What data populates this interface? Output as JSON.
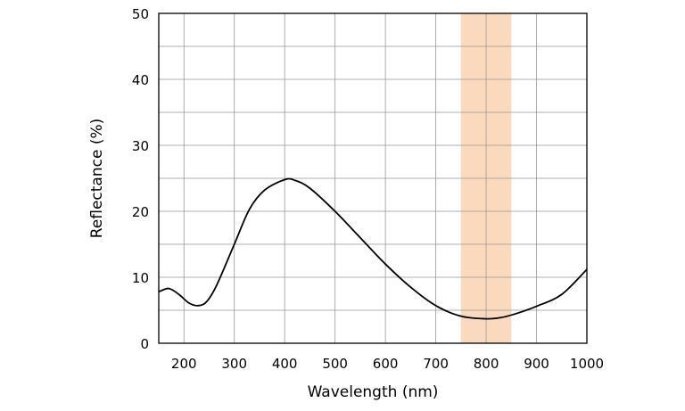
{
  "chart_data": {
    "type": "line",
    "xlabel": "Wavelength (nm)",
    "ylabel": "Reflectance (%)",
    "xlim": [
      150,
      1000
    ],
    "ylim": [
      0,
      50
    ],
    "x_ticks": [
      200,
      300,
      400,
      500,
      600,
      700,
      800,
      900,
      1000
    ],
    "y_ticks": [
      0,
      10,
      20,
      30,
      40,
      50
    ],
    "grid": true,
    "highlight_band": {
      "x_range": [
        750,
        850
      ],
      "color": "#fbd9bd"
    },
    "line_color": "#000000",
    "series": [
      {
        "x": [
          150,
          170,
          190,
          210,
          228,
          245,
          265,
          300,
          330,
          360,
          400,
          420,
          450,
          500,
          550,
          600,
          650,
          700,
          750,
          800,
          830,
          860,
          900,
          950,
          1000
        ],
        "y": [
          7.8,
          8.3,
          7.4,
          6.1,
          5.7,
          6.3,
          8.8,
          15,
          20.3,
          23.2,
          24.8,
          24.7,
          23.5,
          20,
          16,
          12,
          8.5,
          5.7,
          4.1,
          3.7,
          3.9,
          4.5,
          5.6,
          7.4,
          11.2
        ]
      }
    ]
  }
}
